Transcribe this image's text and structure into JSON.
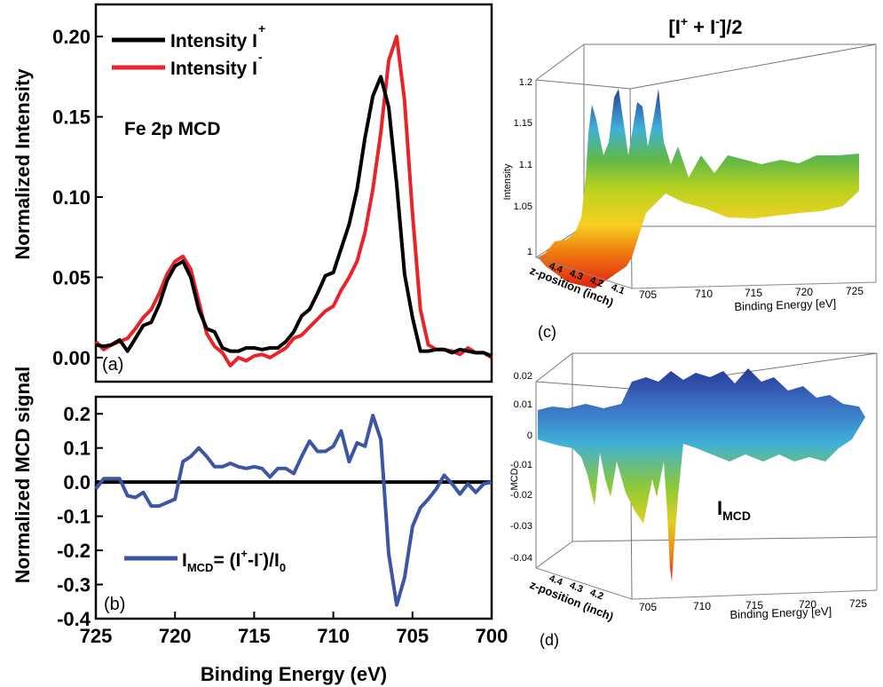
{
  "chart_data": [
    {
      "panel": "(a)",
      "type": "line",
      "annotation": "Fe 2p MCD",
      "ylabel": "Normalized Intensity",
      "xlim": [
        725,
        700
      ],
      "ylim": [
        -0.015,
        0.22
      ],
      "yticks": [
        "0.00",
        "0.05",
        "0.10",
        "0.15",
        "0.20"
      ],
      "yticks_values": [
        0,
        0.05,
        0.1,
        0.15,
        0.2
      ],
      "series": [
        {
          "name": "Intensity I+",
          "legend_text": "Intensity I",
          "legend_sup": "+",
          "color": "#000000",
          "x": [
            725,
            724.5,
            724,
            723.5,
            723,
            722.5,
            722,
            721.5,
            721,
            720.5,
            720,
            719.5,
            719,
            718.5,
            718,
            717.5,
            717,
            716.5,
            716,
            715.5,
            715,
            714.5,
            714,
            713.5,
            713,
            712.5,
            712,
            711.5,
            711,
            710.5,
            710,
            709.5,
            709,
            708.5,
            708,
            707.5,
            707,
            706.5,
            706,
            705.5,
            705,
            704.5,
            704,
            703.5,
            703,
            702.5,
            702,
            701.5,
            701,
            700.5,
            700
          ],
          "y": [
            0.008,
            0.007,
            0.008,
            0.011,
            0.004,
            0.012,
            0.02,
            0.022,
            0.033,
            0.048,
            0.057,
            0.06,
            0.05,
            0.03,
            0.018,
            0.016,
            0.006,
            0.004,
            0.004,
            0.006,
            0.006,
            0.005,
            0.006,
            0.006,
            0.01,
            0.016,
            0.026,
            0.03,
            0.04,
            0.051,
            0.053,
            0.068,
            0.083,
            0.105,
            0.137,
            0.163,
            0.175,
            0.156,
            0.108,
            0.052,
            0.025,
            0.004,
            0.004,
            0.005,
            0.005,
            0.003,
            0.005,
            0.004,
            0.003,
            0.003,
            0.001
          ]
        },
        {
          "name": "Intensity I-",
          "legend_text": "Intensity I",
          "legend_sup": "-",
          "color": "#e8232a",
          "x": [
            725,
            724.5,
            724,
            723.5,
            723,
            722.5,
            722,
            721.5,
            721,
            720.5,
            720,
            719.5,
            719,
            718.5,
            718,
            717.5,
            717,
            716.5,
            716,
            715.5,
            715,
            714.5,
            714,
            713.5,
            713,
            712.5,
            712,
            711.5,
            711,
            710.5,
            710,
            709.5,
            709,
            708.5,
            708,
            707.5,
            707,
            706.5,
            706,
            705.5,
            705,
            704.5,
            704,
            703.5,
            703,
            702.5,
            702,
            701.5,
            701,
            700.5,
            700
          ],
          "y": [
            0.01,
            0.005,
            0.008,
            0.01,
            0.012,
            0.018,
            0.025,
            0.03,
            0.04,
            0.052,
            0.06,
            0.063,
            0.055,
            0.035,
            0.015,
            0.007,
            0.003,
            -0.005,
            0.0,
            -0.002,
            0.001,
            0.002,
            0.0,
            0.003,
            0.006,
            0.012,
            0.014,
            0.019,
            0.024,
            0.029,
            0.032,
            0.042,
            0.05,
            0.06,
            0.078,
            0.105,
            0.14,
            0.185,
            0.2,
            0.16,
            0.09,
            0.03,
            0.008,
            0.005,
            0.005,
            0.004,
            0.002,
            0.006,
            0.003,
            0.003,
            0.0
          ]
        }
      ]
    },
    {
      "panel": "(b)",
      "type": "line",
      "ylabel": "Normalized MCD signal",
      "xlabel": "Binding Energy (eV)",
      "xlim": [
        725,
        700
      ],
      "ylim": [
        -0.4,
        0.25
      ],
      "xticks": [
        "725",
        "720",
        "715",
        "710",
        "705",
        "700"
      ],
      "xticks_values": [
        725,
        720,
        715,
        710,
        705,
        700
      ],
      "yticks": [
        "0.2",
        "0.1",
        "0.0",
        "-0.1",
        "-0.2",
        "-0.3",
        "-0.4"
      ],
      "yticks_values": [
        0.2,
        0.1,
        0.0,
        -0.1,
        -0.2,
        -0.3,
        -0.4
      ],
      "legend": {
        "main": "I",
        "sub": "MCD",
        "formula_a": "= (I",
        "sup_a": "+",
        "formula_b": "-I",
        "sup_b": "-",
        "formula_c": ")/I",
        "sub_c": "0"
      },
      "series": [
        {
          "name": "IMCD = (I+-I-)/I0",
          "color": "#3c55a5",
          "x": [
            725,
            724.5,
            724,
            723.5,
            723,
            722.5,
            722,
            721.5,
            721,
            720.5,
            720,
            719.5,
            719,
            718.5,
            718,
            717.5,
            717,
            716.5,
            716,
            715.5,
            715,
            714.5,
            714,
            713.5,
            713,
            712.5,
            712,
            711.5,
            711,
            710.5,
            710,
            709.5,
            709,
            708.5,
            708,
            707.5,
            707,
            706.5,
            706,
            705.5,
            705,
            704.5,
            704,
            703.5,
            703,
            702.5,
            702,
            701.5,
            701,
            700.5,
            700
          ],
          "y": [
            -0.02,
            0.01,
            0.01,
            0.01,
            -0.04,
            -0.045,
            -0.03,
            -0.07,
            -0.07,
            -0.06,
            -0.05,
            0.06,
            0.075,
            0.1,
            0.075,
            0.045,
            0.045,
            0.055,
            0.045,
            0.04,
            0.045,
            0.04,
            0.015,
            0.04,
            0.04,
            0.025,
            0.075,
            0.12,
            0.09,
            0.09,
            0.105,
            0.15,
            0.06,
            0.115,
            0.105,
            0.195,
            0.125,
            -0.21,
            -0.36,
            -0.28,
            -0.13,
            -0.075,
            -0.05,
            -0.02,
            0.02,
            -0.005,
            -0.035,
            -0.005,
            -0.03,
            -0.005,
            0.0
          ]
        }
      ]
    },
    {
      "panel": "(c)",
      "type": "area",
      "title_main": "[I",
      "title_sup1": "+",
      "title_mid": " + I",
      "title_sup2": "-",
      "title_end": "]/2",
      "zlabel": "Intensity",
      "xlabel": "Binding Energy [eV]",
      "ylabel": "z-position (inch)",
      "xticks": [
        "705",
        "710",
        "715",
        "720",
        "725"
      ],
      "yticks": [
        "4.4",
        "4.3",
        "4.2",
        "4.1"
      ],
      "zticks": [
        "1.2",
        "1.15",
        "1.1",
        "1.05",
        "1"
      ]
    },
    {
      "panel": "(d)",
      "type": "area",
      "annotation_main": "I",
      "annotation_sub": "MCD",
      "zlabel": "MCD",
      "xlabel": "Binding Energy [eV]",
      "ylabel": "z-position (inch)",
      "xticks": [
        "705",
        "710",
        "715",
        "720",
        "725"
      ],
      "yticks": [
        "4.4",
        "4.3",
        "4.2"
      ],
      "zticks": [
        "0.02",
        "0.01",
        "0",
        "-0.01",
        "-0.02",
        "-0.03",
        "-0.04"
      ]
    }
  ]
}
